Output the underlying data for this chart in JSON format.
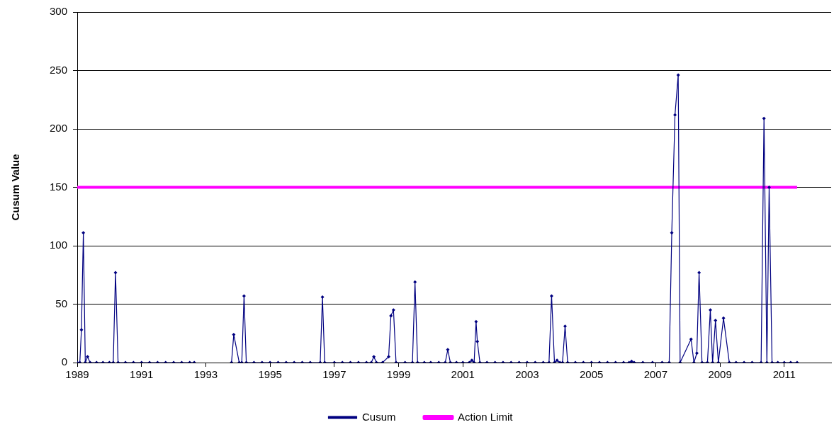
{
  "chart_data": {
    "type": "line",
    "ylabel": "Cusum Value",
    "xlim": [
      1989,
      2012.46
    ],
    "xticks": [
      1989,
      1991,
      1993,
      1995,
      1997,
      1999,
      2001,
      2003,
      2005,
      2007,
      2009,
      2011
    ],
    "ylim": [
      0,
      300
    ],
    "yticks": [
      0,
      50,
      100,
      150,
      200,
      250,
      300
    ],
    "grid": "y",
    "legend": "bottom",
    "marker": "diamond",
    "series": [
      {
        "name": "Cusum",
        "color": "#000080",
        "x": [
          1989.0,
          1989.08,
          1989.13,
          1989.19,
          1989.25,
          1989.32,
          1989.4,
          1989.6,
          1989.8,
          1990.0,
          1990.12,
          1990.19,
          1990.27,
          1990.5,
          1990.75,
          1991.0,
          1991.25,
          1991.5,
          1991.75,
          1992.0,
          1992.25,
          1992.5,
          1992.64,
          1993.2,
          1993.8,
          1993.87,
          1994.04,
          1994.12,
          1994.19,
          1994.26,
          1994.5,
          1994.75,
          1995.0,
          1995.25,
          1995.5,
          1995.75,
          1996.0,
          1996.25,
          1996.56,
          1996.63,
          1996.7,
          1997.0,
          1997.25,
          1997.5,
          1997.75,
          1998.0,
          1998.15,
          1998.23,
          1998.31,
          1998.5,
          1998.69,
          1998.76,
          1998.84,
          1998.92,
          1999.2,
          1999.43,
          1999.51,
          1999.59,
          1999.8,
          2000.0,
          2000.25,
          2000.45,
          2000.53,
          2000.61,
          2000.8,
          2001.0,
          2001.2,
          2001.28,
          2001.35,
          2001.41,
          2001.45,
          2001.53,
          2001.75,
          2002.0,
          2002.25,
          2002.5,
          2002.75,
          2003.0,
          2003.25,
          2003.5,
          2003.68,
          2003.76,
          2003.85,
          2003.93,
          2004.02,
          2004.1,
          2004.18,
          2004.26,
          2004.5,
          2004.75,
          2005.0,
          2005.25,
          2005.5,
          2005.75,
          2006.0,
          2006.17,
          2006.25,
          2006.33,
          2006.6,
          2006.9,
          2007.2,
          2007.42,
          2007.5,
          2007.6,
          2007.7,
          2007.76,
          2008.1,
          2008.19,
          2008.28,
          2008.35,
          2008.44,
          2008.61,
          2008.7,
          2008.77,
          2008.86,
          2008.95,
          2009.11,
          2009.29,
          2009.5,
          2009.75,
          2010.0,
          2010.28,
          2010.37,
          2010.46,
          2010.53,
          2010.62,
          2010.8,
          2011.0,
          2011.2,
          2011.4
        ],
        "values": [
          0,
          0,
          28,
          111,
          0,
          5,
          0,
          0,
          0,
          0,
          0,
          77,
          0,
          0,
          0,
          0,
          0,
          0,
          0,
          0,
          0,
          0,
          0,
          null,
          0,
          24,
          0,
          0,
          57,
          0,
          0,
          0,
          0,
          0,
          0,
          0,
          0,
          0,
          0,
          56,
          0,
          0,
          0,
          0,
          0,
          0,
          0,
          5,
          0,
          0,
          5,
          40,
          45,
          0,
          0,
          0,
          69,
          0,
          0,
          0,
          0,
          0,
          11,
          0,
          0,
          0,
          0,
          2,
          0,
          35,
          18,
          0,
          0,
          0,
          0,
          0,
          0,
          0,
          0,
          0,
          0,
          57,
          0,
          2,
          0,
          0,
          31,
          0,
          0,
          0,
          0,
          0,
          0,
          0,
          0,
          0,
          1,
          0,
          0,
          0,
          0,
          0,
          111,
          212,
          246,
          0,
          20,
          0,
          8,
          77,
          0,
          0,
          45,
          0,
          36,
          0,
          38,
          0,
          0,
          0,
          0,
          0,
          209,
          0,
          150,
          0,
          0,
          0,
          0,
          0
        ]
      },
      {
        "name": "Action Limit",
        "color": "#ff00ff",
        "marker": "none",
        "x": [
          1989,
          2011.4
        ],
        "values": [
          150,
          150
        ]
      }
    ]
  }
}
